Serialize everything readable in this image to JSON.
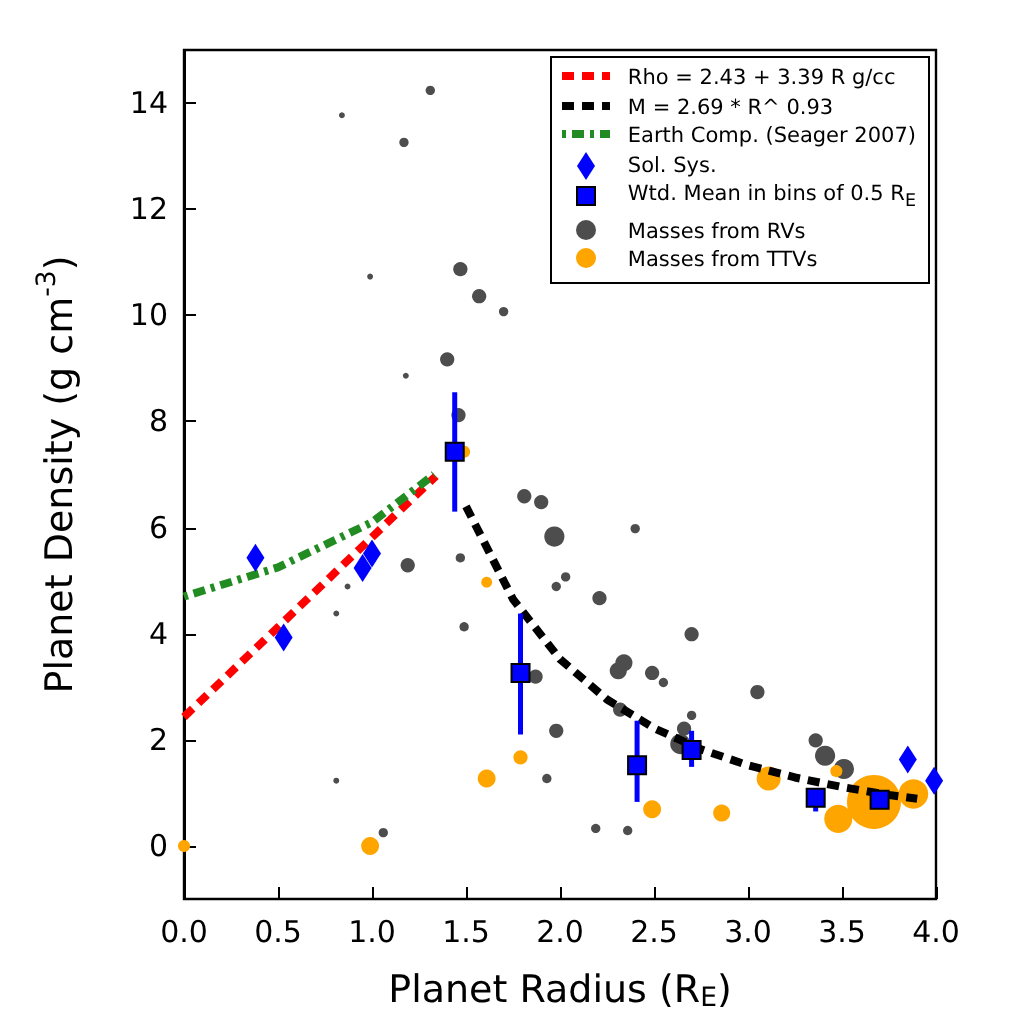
{
  "chart_data": {
    "type": "scatter",
    "xlabel": "Planet Radius (R$_{E}$)",
    "ylabel": "Planet Density (g cm$^{-3}$)",
    "xlim": [
      0,
      4
    ],
    "ylim": [
      -1,
      15
    ],
    "xticks": [
      {
        "value": 0,
        "label": "0.0"
      },
      {
        "value": 0.5,
        "label": "0.5"
      },
      {
        "value": 1,
        "label": "1.0"
      },
      {
        "value": 1.5,
        "label": "1.5"
      },
      {
        "value": 2,
        "label": "2.0"
      },
      {
        "value": 2.5,
        "label": "2.5"
      },
      {
        "value": 3,
        "label": "3.0"
      },
      {
        "value": 3.5,
        "label": "3.5"
      },
      {
        "value": 4,
        "label": "4.0"
      }
    ],
    "yticks": [
      0,
      2,
      4,
      6,
      8,
      10,
      12,
      14
    ],
    "grid": false,
    "legend": "top right",
    "series": [
      {
        "name": "Rho = 2.43 + 3.39 R g/cc",
        "type": "line",
        "color": "#ff0000",
        "line_style": "dashed",
        "marker": "none",
        "x": [
          0,
          1.34
        ],
        "values": [
          2.43,
          6.97
        ]
      },
      {
        "name": "M = 2.69 * R^ 0.93",
        "type": "line",
        "color": "#000000",
        "line_style": "dashed",
        "marker": "none",
        "x": [
          1.5,
          1.75,
          2,
          2.25,
          2.5,
          2.75,
          3,
          3.25,
          3.5,
          3.75,
          3.9
        ],
        "values": [
          6.4,
          4.65,
          3.52,
          2.76,
          2.22,
          1.82,
          1.52,
          1.29,
          1.11,
          0.96,
          0.89
        ]
      },
      {
        "name": "Earth Comp. (Seager 2007)",
        "type": "line",
        "color": "#228b22",
        "line_style": "dotted",
        "marker": "none",
        "x": [
          0,
          0.5,
          1,
          1.33
        ],
        "values": [
          4.7,
          5.25,
          6.1,
          7.0
        ]
      },
      {
        "name": "Sol. Sys.",
        "color": "#0000ff",
        "marker": "diamond",
        "x": [
          0.38,
          0.53,
          0.95,
          1.0,
          3.85,
          3.99
        ],
        "values": [
          5.43,
          3.93,
          5.24,
          5.51,
          1.63,
          1.23
        ]
      },
      {
        "name": "Wtd. Mean in bins of 0.5 R$_{E}$",
        "color": "#0000ff",
        "marker": "square",
        "x": [
          1.44,
          1.79,
          2.41,
          2.7,
          3.36,
          3.7
        ],
        "values": [
          7.43,
          3.26,
          1.52,
          1.81,
          0.91,
          0.87
        ],
        "errors": [
          [
            6.3,
            8.55
          ],
          [
            2.1,
            4.38
          ],
          [
            0.83,
            2.36
          ],
          [
            1.49,
            2.17
          ],
          [
            0.65,
            1.09
          ],
          [
            0.77,
            0.97
          ]
        ]
      },
      {
        "name": "Masses from RVs",
        "type": "bubble",
        "color": "#4d4d4d",
        "marker": "circle",
        "x": [
          0.84,
          1.17,
          1.31,
          0.99,
          1.47,
          1.57,
          1.7,
          1.4,
          1.18,
          1.46,
          1.81,
          1.9,
          1.19,
          0.87,
          0.81,
          1.47,
          1.49,
          1.97,
          1.98,
          1.87,
          1.98,
          1.93,
          0.81,
          1.06,
          2.4,
          2.03,
          2.21,
          2.31,
          2.34,
          2.49,
          2.55,
          2.7,
          2.32,
          2.7,
          2.66,
          2.64,
          3.05,
          3.36,
          3.41,
          3.51,
          2.19,
          2.36
        ],
        "values": [
          13.77,
          13.26,
          14.24,
          10.73,
          10.87,
          10.36,
          10.07,
          9.17,
          8.86,
          8.12,
          6.59,
          6.48,
          5.29,
          4.89,
          4.38,
          5.43,
          4.13,
          5.83,
          4.89,
          3.19,
          2.17,
          1.27,
          1.23,
          0.25,
          5.98,
          5.07,
          4.67,
          3.3,
          3.45,
          3.26,
          3.08,
          3.99,
          2.57,
          2.46,
          2.21,
          1.92,
          2.9,
          1.99,
          1.7,
          1.45,
          0.33,
          0.29
        ],
        "sizes": [
          0.012,
          0.03,
          0.03,
          0.012,
          0.07,
          0.07,
          0.03,
          0.07,
          0.012,
          0.07,
          0.07,
          0.07,
          0.07,
          0.012,
          0.012,
          0.03,
          0.03,
          0.14,
          0.03,
          0.07,
          0.07,
          0.03,
          0.012,
          0.03,
          0.03,
          0.03,
          0.07,
          0.1,
          0.1,
          0.07,
          0.03,
          0.07,
          0.07,
          0.03,
          0.07,
          0.14,
          0.07,
          0.07,
          0.14,
          0.14,
          0.03,
          0.03
        ]
      },
      {
        "name": "Masses from TTVs",
        "type": "bubble",
        "color": "#ffa500",
        "marker": "circle",
        "x": [
          0,
          0.99,
          1.61,
          1.61,
          1.79,
          1.49,
          2.49,
          2.86,
          3.11,
          3.47,
          3.48,
          3.67,
          3.88
        ],
        "values": [
          0,
          0,
          4.97,
          1.27,
          1.67,
          7.43,
          0.69,
          0.62,
          1.27,
          1.41,
          0.51,
          0.83,
          0.98
        ],
        "sizes": [
          0.05,
          0.11,
          0.04,
          0.11,
          0.07,
          0.05,
          0.11,
          0.1,
          0.2,
          0.05,
          0.27,
          1,
          0.3
        ]
      }
    ]
  }
}
